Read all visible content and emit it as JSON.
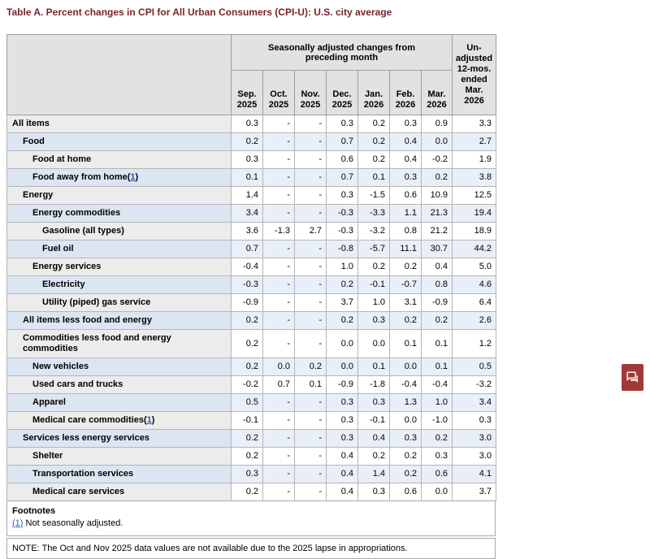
{
  "title": "Table A. Percent changes in CPI for All Urban Consumers (CPI-U): U.S. city average",
  "table": {
    "group_header": "Seasonally adjusted changes from preceding month",
    "unadjusted_header": "Un-\nadjusted\n12-mos.\nended\nMar.\n2026",
    "months": [
      "Sep.\n2025",
      "Oct.\n2025",
      "Nov.\n2025",
      "Dec.\n2025",
      "Jan.\n2026",
      "Feb.\n2026",
      "Mar.\n2026"
    ],
    "rows": [
      {
        "label": "All items",
        "indent": 0,
        "fn": null,
        "values": [
          "0.3",
          "-",
          "-",
          "0.3",
          "0.2",
          "0.3",
          "0.9",
          "3.3"
        ]
      },
      {
        "label": "Food",
        "indent": 1,
        "fn": null,
        "values": [
          "0.2",
          "-",
          "-",
          "0.7",
          "0.2",
          "0.4",
          "0.0",
          "2.7"
        ]
      },
      {
        "label": "Food at home",
        "indent": 2,
        "fn": null,
        "values": [
          "0.3",
          "-",
          "-",
          "0.6",
          "0.2",
          "0.4",
          "-0.2",
          "1.9"
        ]
      },
      {
        "label": "Food away from home",
        "indent": 2,
        "fn": "1",
        "values": [
          "0.1",
          "-",
          "-",
          "0.7",
          "0.1",
          "0.3",
          "0.2",
          "3.8"
        ]
      },
      {
        "label": "Energy",
        "indent": 1,
        "fn": null,
        "values": [
          "1.4",
          "-",
          "-",
          "0.3",
          "-1.5",
          "0.6",
          "10.9",
          "12.5"
        ]
      },
      {
        "label": "Energy commodities",
        "indent": 2,
        "fn": null,
        "values": [
          "3.4",
          "-",
          "-",
          "-0.3",
          "-3.3",
          "1.1",
          "21.3",
          "19.4"
        ]
      },
      {
        "label": "Gasoline (all types)",
        "indent": 3,
        "fn": null,
        "values": [
          "3.6",
          "-1.3",
          "2.7",
          "-0.3",
          "-3.2",
          "0.8",
          "21.2",
          "18.9"
        ]
      },
      {
        "label": "Fuel oil",
        "indent": 3,
        "fn": null,
        "values": [
          "0.7",
          "-",
          "-",
          "-0.8",
          "-5.7",
          "11.1",
          "30.7",
          "44.2"
        ]
      },
      {
        "label": "Energy services",
        "indent": 2,
        "fn": null,
        "values": [
          "-0.4",
          "-",
          "-",
          "1.0",
          "0.2",
          "0.2",
          "0.4",
          "5.0"
        ]
      },
      {
        "label": "Electricity",
        "indent": 3,
        "fn": null,
        "values": [
          "-0.3",
          "-",
          "-",
          "0.2",
          "-0.1",
          "-0.7",
          "0.8",
          "4.6"
        ]
      },
      {
        "label": "Utility (piped) gas service",
        "indent": 3,
        "fn": null,
        "values": [
          "-0.9",
          "-",
          "-",
          "3.7",
          "1.0",
          "3.1",
          "-0.9",
          "6.4"
        ]
      },
      {
        "label": "All items less food and energy",
        "indent": 1,
        "fn": null,
        "values": [
          "0.2",
          "-",
          "-",
          "0.2",
          "0.3",
          "0.2",
          "0.2",
          "2.6"
        ]
      },
      {
        "label": "Commodities less food and energy commodities",
        "indent": 1,
        "fn": null,
        "values": [
          "0.2",
          "-",
          "-",
          "0.0",
          "0.0",
          "0.1",
          "0.1",
          "1.2"
        ]
      },
      {
        "label": "New vehicles",
        "indent": 2,
        "fn": null,
        "values": [
          "0.2",
          "0.0",
          "0.2",
          "0.0",
          "0.1",
          "0.0",
          "0.1",
          "0.5"
        ]
      },
      {
        "label": "Used cars and trucks",
        "indent": 2,
        "fn": null,
        "values": [
          "-0.2",
          "0.7",
          "0.1",
          "-0.9",
          "-1.8",
          "-0.4",
          "-0.4",
          "-3.2"
        ]
      },
      {
        "label": "Apparel",
        "indent": 2,
        "fn": null,
        "values": [
          "0.5",
          "-",
          "-",
          "0.3",
          "0.3",
          "1.3",
          "1.0",
          "3.4"
        ]
      },
      {
        "label": "Medical care commodities",
        "indent": 2,
        "fn": "1",
        "values": [
          "-0.1",
          "-",
          "-",
          "0.3",
          "-0.1",
          "0.0",
          "-1.0",
          "0.3"
        ]
      },
      {
        "label": "Services less energy services",
        "indent": 1,
        "fn": null,
        "values": [
          "0.2",
          "-",
          "-",
          "0.3",
          "0.4",
          "0.3",
          "0.2",
          "3.0"
        ]
      },
      {
        "label": "Shelter",
        "indent": 2,
        "fn": null,
        "values": [
          "0.2",
          "-",
          "-",
          "0.4",
          "0.2",
          "0.2",
          "0.3",
          "3.0"
        ]
      },
      {
        "label": "Transportation services",
        "indent": 2,
        "fn": null,
        "values": [
          "0.3",
          "-",
          "-",
          "0.4",
          "1.4",
          "0.2",
          "0.6",
          "4.1"
        ]
      },
      {
        "label": "Medical care services",
        "indent": 2,
        "fn": null,
        "values": [
          "0.2",
          "-",
          "-",
          "0.4",
          "0.3",
          "0.6",
          "0.0",
          "3.7"
        ]
      }
    ]
  },
  "footnotes": {
    "heading": "Footnotes",
    "marker": "(1)",
    "text": "Not seasonally adjusted."
  },
  "note": {
    "text": "NOTE: The Oct and Nov 2025 data values are not available due to the 2025 lapse in appropriations."
  },
  "chat_button": {
    "icon": "chat-icon"
  },
  "colors": {
    "title": "#7a232c",
    "header_bg": "#e2e2e2",
    "stripe_gray_label": "#ececec",
    "stripe_blue_label": "#dce6f3",
    "stripe_blue_cell": "#e9eff8",
    "link": "#2e58b8",
    "chat_button_bg": "#a23936"
  }
}
